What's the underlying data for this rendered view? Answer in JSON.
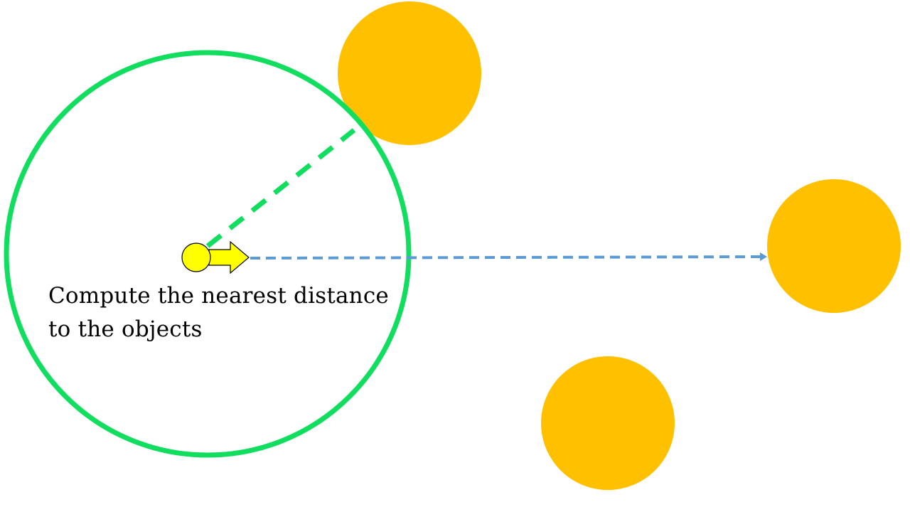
{
  "caption": {
    "line1": "Compute the nearest distance",
    "line2": "to the objects"
  },
  "colors": {
    "range_circle": "#11dd5f",
    "nearest_line": "#11dd5f",
    "ray": "#5b9bd5",
    "object": "#ffc000",
    "agent": "#ffff00",
    "agent_outline": "#000000"
  },
  "elements": {
    "objects": [
      "object-top",
      "object-right",
      "object-bottom"
    ],
    "agent": "agent",
    "direction": "direction-arrow"
  }
}
